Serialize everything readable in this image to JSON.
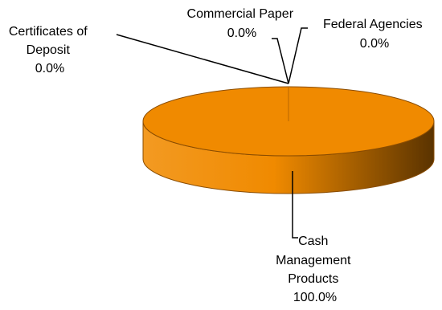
{
  "chart_data": {
    "type": "pie",
    "style": "3d",
    "categories": [
      "Certificates of Deposit",
      "Commercial Paper",
      "Federal Agencies",
      "Cash Management Products"
    ],
    "values": [
      0.0,
      0.0,
      0.0,
      100.0
    ],
    "unit": "%",
    "labels": [
      {
        "lines": [
          "Certificates of",
          "Deposit",
          "0.0%"
        ]
      },
      {
        "lines": [
          "Commercial Paper",
          "0.0%"
        ]
      },
      {
        "lines": [
          "Federal Agencies",
          "0.0%"
        ]
      },
      {
        "lines": [
          "Cash",
          "Management",
          "Products",
          "100.0%"
        ]
      }
    ],
    "colors": {
      "slice": "#F08A00",
      "slice_edge": "#8A4C00",
      "side_light": "#F39A22",
      "side_dark": "#5A3300",
      "leader": "#000000"
    }
  }
}
